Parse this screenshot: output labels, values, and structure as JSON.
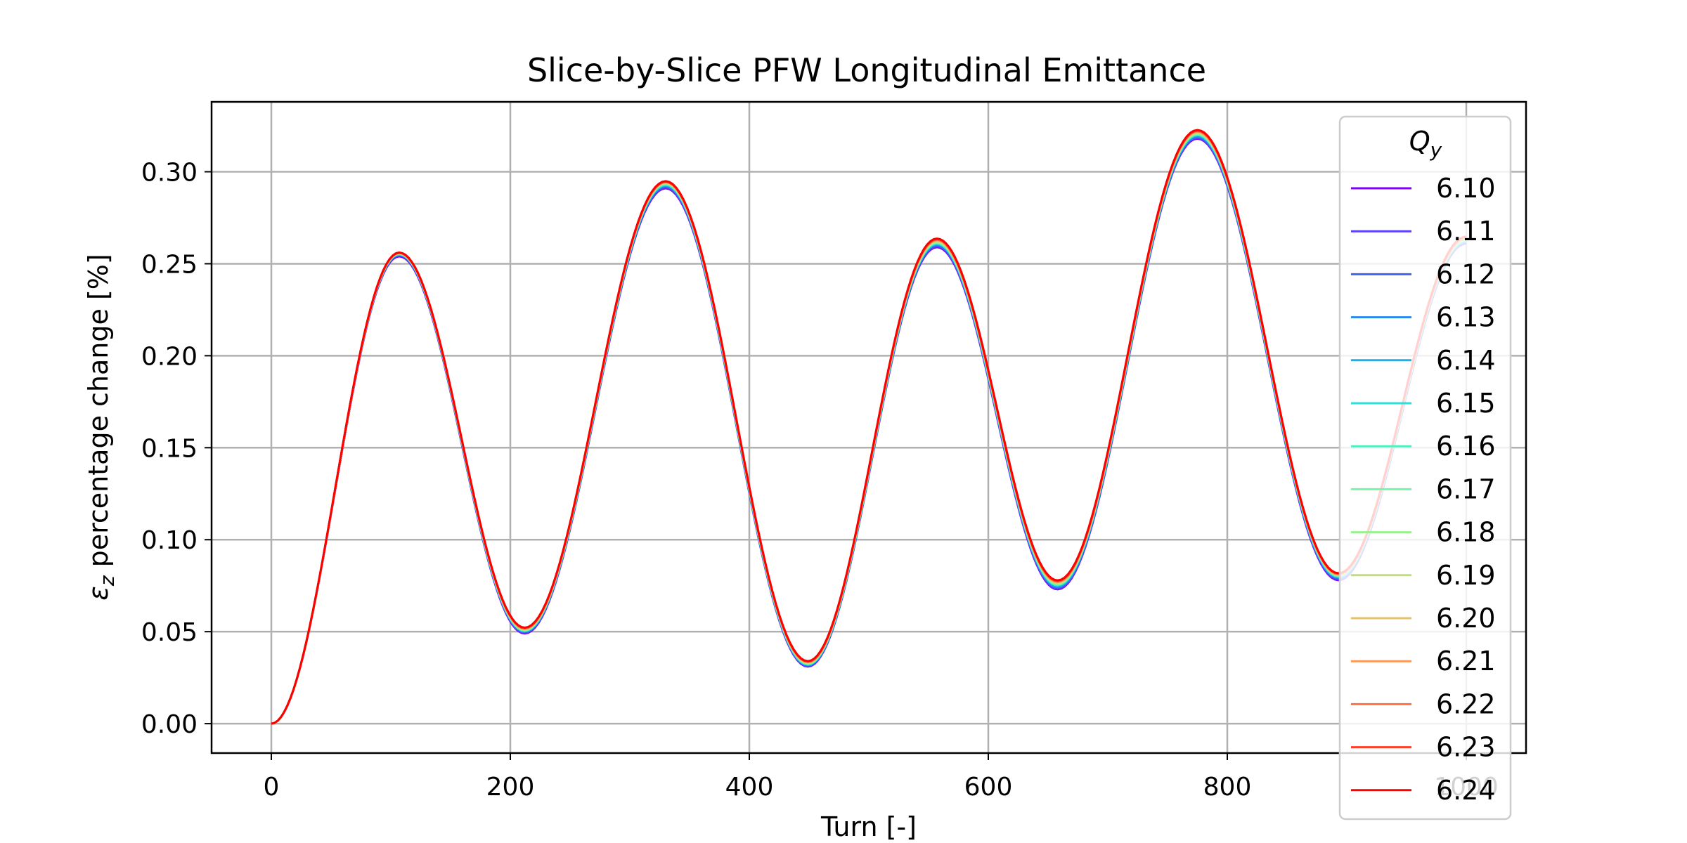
{
  "chart_data": {
    "type": "line",
    "title": "Slice-by-Slice PFW Longitudinal Emittance",
    "xlabel": "Turn [-]",
    "ylabel": {
      "symbol": "ε",
      "subscript": "z",
      "text": " percentage change [%]"
    },
    "xlim": [
      -50,
      1050
    ],
    "ylim": [
      -0.016,
      0.338
    ],
    "x_ticks": [
      0,
      200,
      400,
      600,
      800,
      1000
    ],
    "x_tick_labels": [
      "0",
      "200",
      "400",
      "600",
      "800",
      "1000"
    ],
    "y_ticks": [
      0.0,
      0.05,
      0.1,
      0.15,
      0.2,
      0.25,
      0.3
    ],
    "y_tick_labels": [
      "0.00",
      "0.05",
      "0.10",
      "0.15",
      "0.20",
      "0.25",
      "0.30"
    ],
    "grid": true,
    "legend": {
      "title_symbol": "Q",
      "title_subscript": "y",
      "position": "right"
    },
    "x": [
      0,
      107,
      212,
      330,
      449,
      557,
      658,
      775,
      893,
      1000
    ],
    "series": [
      {
        "name": "6.10",
        "color": "#8000ff",
        "values": [
          0,
          0.254,
          0.049,
          0.291,
          0.031,
          0.259,
          0.073,
          0.318,
          0.078,
          0.261
        ]
      },
      {
        "name": "6.11",
        "color": "#5a40f9",
        "values": [
          0,
          0.2545,
          0.0495,
          0.2915,
          0.0313,
          0.2595,
          0.0735,
          0.3184,
          0.0785,
          0.2613
        ]
      },
      {
        "name": "6.12",
        "color": "#3d63f0",
        "values": [
          0,
          0.2547,
          0.0498,
          0.292,
          0.0316,
          0.26,
          0.074,
          0.3189,
          0.079,
          0.2616
        ]
      },
      {
        "name": "6.13",
        "color": "#2a8af0",
        "values": [
          0,
          0.2549,
          0.05,
          0.2923,
          0.0318,
          0.2604,
          0.0744,
          0.3193,
          0.0793,
          0.2619
        ]
      },
      {
        "name": "6.14",
        "color": "#18b2e8",
        "values": [
          0,
          0.255,
          0.0502,
          0.2926,
          0.032,
          0.2607,
          0.0748,
          0.3197,
          0.0796,
          0.2622
        ]
      },
      {
        "name": "6.15",
        "color": "#2ae0d8",
        "values": [
          0,
          0.2552,
          0.0504,
          0.2929,
          0.0322,
          0.261,
          0.0752,
          0.32,
          0.0799,
          0.2625
        ]
      },
      {
        "name": "6.16",
        "color": "#4df0c0",
        "values": [
          0,
          0.2553,
          0.0506,
          0.2932,
          0.0324,
          0.2613,
          0.0755,
          0.3203,
          0.0801,
          0.2628
        ]
      },
      {
        "name": "6.17",
        "color": "#73f8a8",
        "values": [
          0,
          0.2554,
          0.0508,
          0.2935,
          0.0326,
          0.2616,
          0.0758,
          0.3206,
          0.0804,
          0.263
        ]
      },
      {
        "name": "6.18",
        "color": "#9af28e",
        "values": [
          0,
          0.2555,
          0.051,
          0.2937,
          0.0328,
          0.2619,
          0.0761,
          0.3209,
          0.0806,
          0.2633
        ]
      },
      {
        "name": "6.19",
        "color": "#c0e07c",
        "values": [
          0,
          0.2556,
          0.0512,
          0.2939,
          0.033,
          0.2622,
          0.0764,
          0.3212,
          0.0808,
          0.2635
        ]
      },
      {
        "name": "6.20",
        "color": "#e6c26a",
        "values": [
          0,
          0.2557,
          0.0514,
          0.2941,
          0.0332,
          0.2625,
          0.0767,
          0.3215,
          0.081,
          0.2638
        ]
      },
      {
        "name": "6.21",
        "color": "#ff9a54",
        "values": [
          0,
          0.2558,
          0.0516,
          0.2943,
          0.0334,
          0.2628,
          0.077,
          0.3218,
          0.0812,
          0.264
        ]
      },
      {
        "name": "6.22",
        "color": "#ff7040",
        "values": [
          0,
          0.2559,
          0.0518,
          0.2945,
          0.0336,
          0.2631,
          0.0773,
          0.3221,
          0.0814,
          0.2643
        ]
      },
      {
        "name": "6.23",
        "color": "#ff3f28",
        "values": [
          0,
          0.256,
          0.052,
          0.2947,
          0.0338,
          0.2634,
          0.0776,
          0.3224,
          0.0816,
          0.2645
        ]
      },
      {
        "name": "6.24",
        "color": "#ff0000",
        "values": [
          0,
          0.2561,
          0.0522,
          0.2949,
          0.034,
          0.2637,
          0.0779,
          0.3227,
          0.0818,
          0.2648
        ]
      }
    ]
  }
}
